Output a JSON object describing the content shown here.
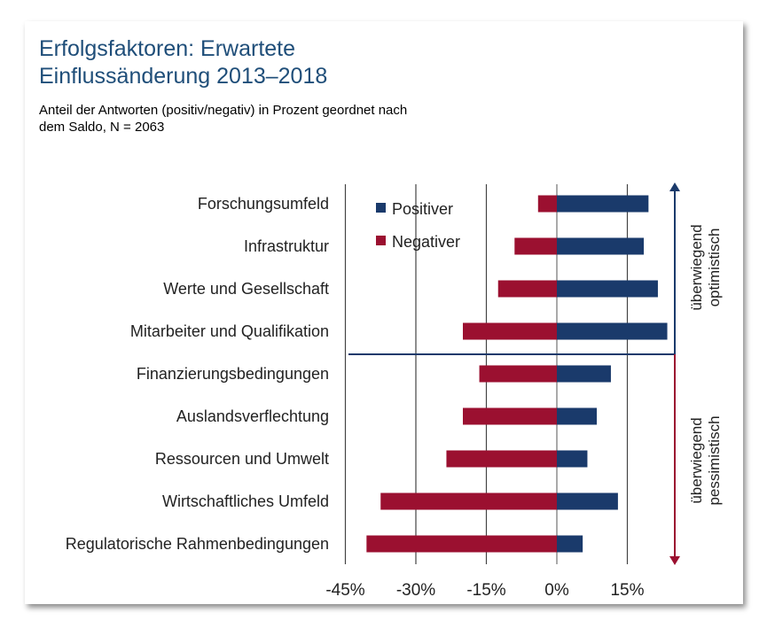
{
  "title_line1": "Erfolgsfaktoren: Erwartete",
  "title_line2": "Einflussänderung 2013–2018",
  "subtitle_line1": "Anteil der Antworten (positiv/negativ) in Prozent geordnet nach",
  "subtitle_line2": "dem Saldo, N = 2063",
  "colors": {
    "positive": "#1a3a6b",
    "negative": "#9b1030",
    "title": "#1f4e79"
  },
  "legend": {
    "positive": "Positiver",
    "negative": "Negativer"
  },
  "side_labels": {
    "top": [
      "überwiegend",
      "optimistisch"
    ],
    "bottom": [
      "überwiegend",
      "pessimistisch"
    ]
  },
  "chart_data": {
    "type": "bar",
    "orientation": "horizontal",
    "categories": [
      "Forschungsumfeld",
      "Infrastruktur",
      "Werte und Gesellschaft",
      "Mitarbeiter und Qualifikation",
      "Finanzierungsbedingungen",
      "Auslandsverflechtung",
      "Ressourcen und Umwelt",
      "Wirtschaftliches Umfeld",
      "Regulatorische Rahmenbedingungen"
    ],
    "series": [
      {
        "name": "Positiver",
        "values": [
          19.5,
          18.5,
          21.5,
          23.5,
          11.5,
          8.5,
          6.5,
          13,
          5.5
        ]
      },
      {
        "name": "Negativer",
        "values": [
          -4,
          -9,
          -12.5,
          -20,
          -16.5,
          -20,
          -23.5,
          -37.5,
          -40.5
        ]
      }
    ],
    "xticks": [
      -45,
      -30,
      -15,
      0,
      15
    ],
    "xtick_labels": [
      "-45%",
      "-30%",
      "-15%",
      "0%",
      "15%"
    ],
    "xlim": [
      -45,
      25
    ],
    "divider_after_index": 3,
    "grid": "vertical"
  }
}
